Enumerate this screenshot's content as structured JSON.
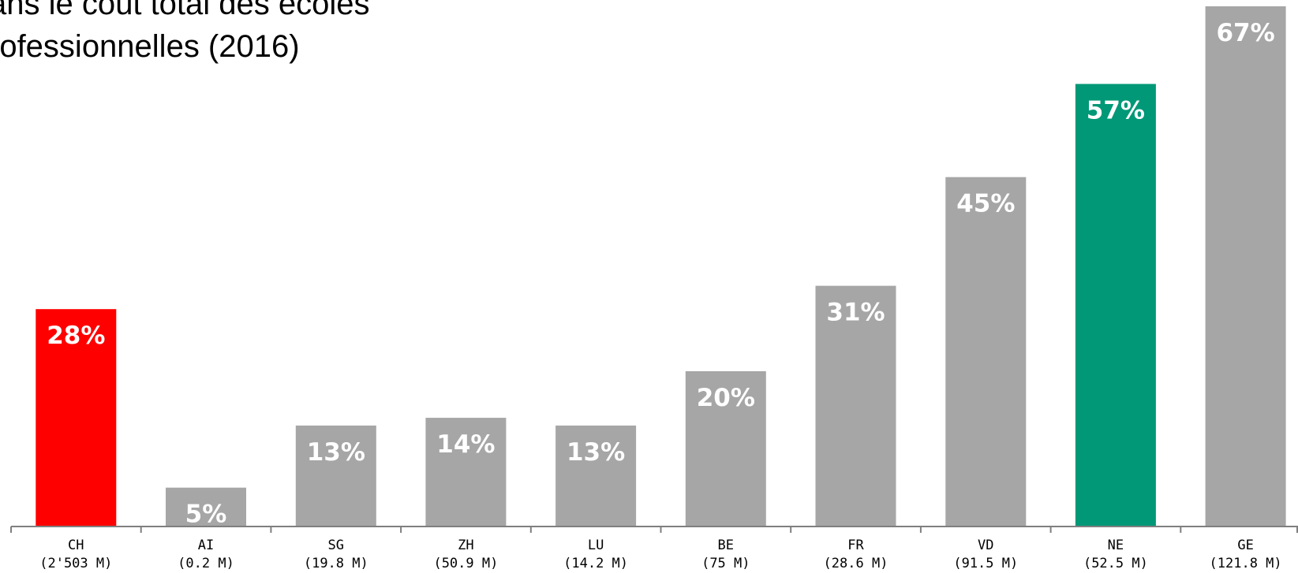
{
  "title_lines": [
    "ans le coût total des écoles",
    "rofessionnelles (2016)"
  ],
  "colors": {
    "default": "#a6a6a6",
    "CH": "#ff0000",
    "NE": "#009877",
    "axis": "#7f7f7f"
  },
  "chart_data": {
    "type": "bar",
    "title": "ans le coût total des écoles rofessionnelles (2016)",
    "categories": [
      "CH",
      "AI",
      "SG",
      "ZH",
      "LU",
      "BE",
      "FR",
      "VD",
      "NE",
      "GE"
    ],
    "sublabels": [
      "(2'503 M)",
      "(0.2 M)",
      "(19.8 M)",
      "(50.9 M)",
      "(14.2 M)",
      "(75 M)",
      "(28.6 M)",
      "(91.5 M)",
      "(52.5 M)",
      "(121.8 M)"
    ],
    "values": [
      28,
      5,
      13,
      14,
      13,
      20,
      31,
      45,
      57,
      67
    ],
    "value_labels": [
      "28%",
      "5%",
      "13%",
      "14%",
      "13%",
      "20%",
      "31%",
      "45%",
      "57%",
      "67%"
    ],
    "xlabel": "",
    "ylabel": "",
    "ylim": [
      0,
      67
    ],
    "grid": false,
    "legend": "none"
  }
}
